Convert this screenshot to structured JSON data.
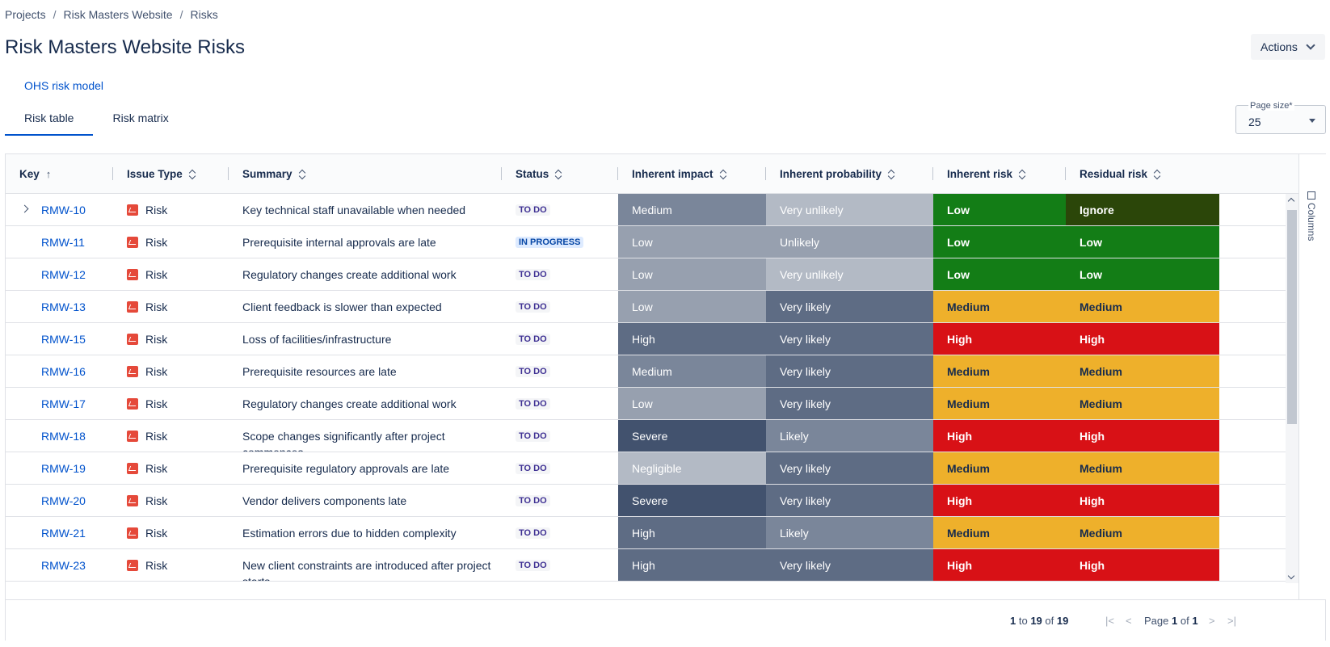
{
  "breadcrumb": [
    "Projects",
    "Risk Masters Website",
    "Risks"
  ],
  "page_title": "Risk Masters Website Risks",
  "actions_label": "Actions",
  "model_link": "OHS risk model",
  "tabs": [
    {
      "label": "Risk table",
      "active": true
    },
    {
      "label": "Risk matrix",
      "active": false
    }
  ],
  "page_size": {
    "label": "Page size*",
    "value": "25"
  },
  "columns_label": "Columns",
  "columns": [
    "Key",
    "Issue Type",
    "Summary",
    "Status",
    "Inherent impact",
    "Inherent probability",
    "Inherent risk",
    "Residual risk"
  ],
  "colors": {
    "impact": {
      "Negligible": "#b3bac5",
      "Low": "#97a0af",
      "Medium": "#7a869a",
      "High": "#5e6c84",
      "Severe": "#42526e"
    },
    "probability": {
      "Very unlikely": "#b3bac5",
      "Unlikely": "#97a0af",
      "Likely": "#7a869a",
      "Very likely": "#5e6c84"
    },
    "risk": {
      "Ignore": "#2b4609",
      "Low": "#137d16",
      "Medium": "#eeb02b",
      "High": "#d81116"
    }
  },
  "rows": [
    {
      "key": "RMW-10",
      "type": "Risk",
      "summary": "Key technical staff unavailable when needed",
      "status": "TO DO",
      "impact": "Medium",
      "probability": "Very unlikely",
      "inherent_risk": "Low",
      "residual_risk": "Ignore",
      "expandable": true
    },
    {
      "key": "RMW-11",
      "type": "Risk",
      "summary": "Prerequisite internal approvals are late",
      "status": "IN PROGRESS",
      "impact": "Low",
      "probability": "Unlikely",
      "inherent_risk": "Low",
      "residual_risk": "Low"
    },
    {
      "key": "RMW-12",
      "type": "Risk",
      "summary": "Regulatory changes create additional work",
      "status": "TO DO",
      "impact": "Low",
      "probability": "Very unlikely",
      "inherent_risk": "Low",
      "residual_risk": "Low"
    },
    {
      "key": "RMW-13",
      "type": "Risk",
      "summary": "Client feedback is slower than expected",
      "status": "TO DO",
      "impact": "Low",
      "probability": "Very likely",
      "inherent_risk": "Medium",
      "residual_risk": "Medium"
    },
    {
      "key": "RMW-15",
      "type": "Risk",
      "summary": "Loss of facilities/infrastructure",
      "status": "TO DO",
      "impact": "High",
      "probability": "Very likely",
      "inherent_risk": "High",
      "residual_risk": "High"
    },
    {
      "key": "RMW-16",
      "type": "Risk",
      "summary": "Prerequisite resources are late",
      "status": "TO DO",
      "impact": "Medium",
      "probability": "Very likely",
      "inherent_risk": "Medium",
      "residual_risk": "Medium"
    },
    {
      "key": "RMW-17",
      "type": "Risk",
      "summary": "Regulatory changes create additional work",
      "status": "TO DO",
      "impact": "Low",
      "probability": "Very likely",
      "inherent_risk": "Medium",
      "residual_risk": "Medium"
    },
    {
      "key": "RMW-18",
      "type": "Risk",
      "summary": "Scope changes significantly after project commences",
      "status": "TO DO",
      "impact": "Severe",
      "probability": "Likely",
      "inherent_risk": "High",
      "residual_risk": "High"
    },
    {
      "key": "RMW-19",
      "type": "Risk",
      "summary": "Prerequisite regulatory approvals are late",
      "status": "TO DO",
      "impact": "Negligible",
      "probability": "Very likely",
      "inherent_risk": "Medium",
      "residual_risk": "Medium"
    },
    {
      "key": "RMW-20",
      "type": "Risk",
      "summary": "Vendor delivers components late",
      "status": "TO DO",
      "impact": "Severe",
      "probability": "Very likely",
      "inherent_risk": "High",
      "residual_risk": "High"
    },
    {
      "key": "RMW-21",
      "type": "Risk",
      "summary": "Estimation errors due to hidden complexity",
      "status": "TO DO",
      "impact": "High",
      "probability": "Likely",
      "inherent_risk": "Medium",
      "residual_risk": "Medium"
    },
    {
      "key": "RMW-23",
      "type": "Risk",
      "summary": "New client constraints are introduced after project starts",
      "status": "TO DO",
      "impact": "High",
      "probability": "Very likely",
      "inherent_risk": "High",
      "residual_risk": "High"
    }
  ],
  "footer": {
    "from": "1",
    "to_word": "to",
    "to": "19",
    "of_word": "of",
    "total": "19",
    "page_word": "Page",
    "page": "1",
    "page_of": "of",
    "pages": "1"
  }
}
